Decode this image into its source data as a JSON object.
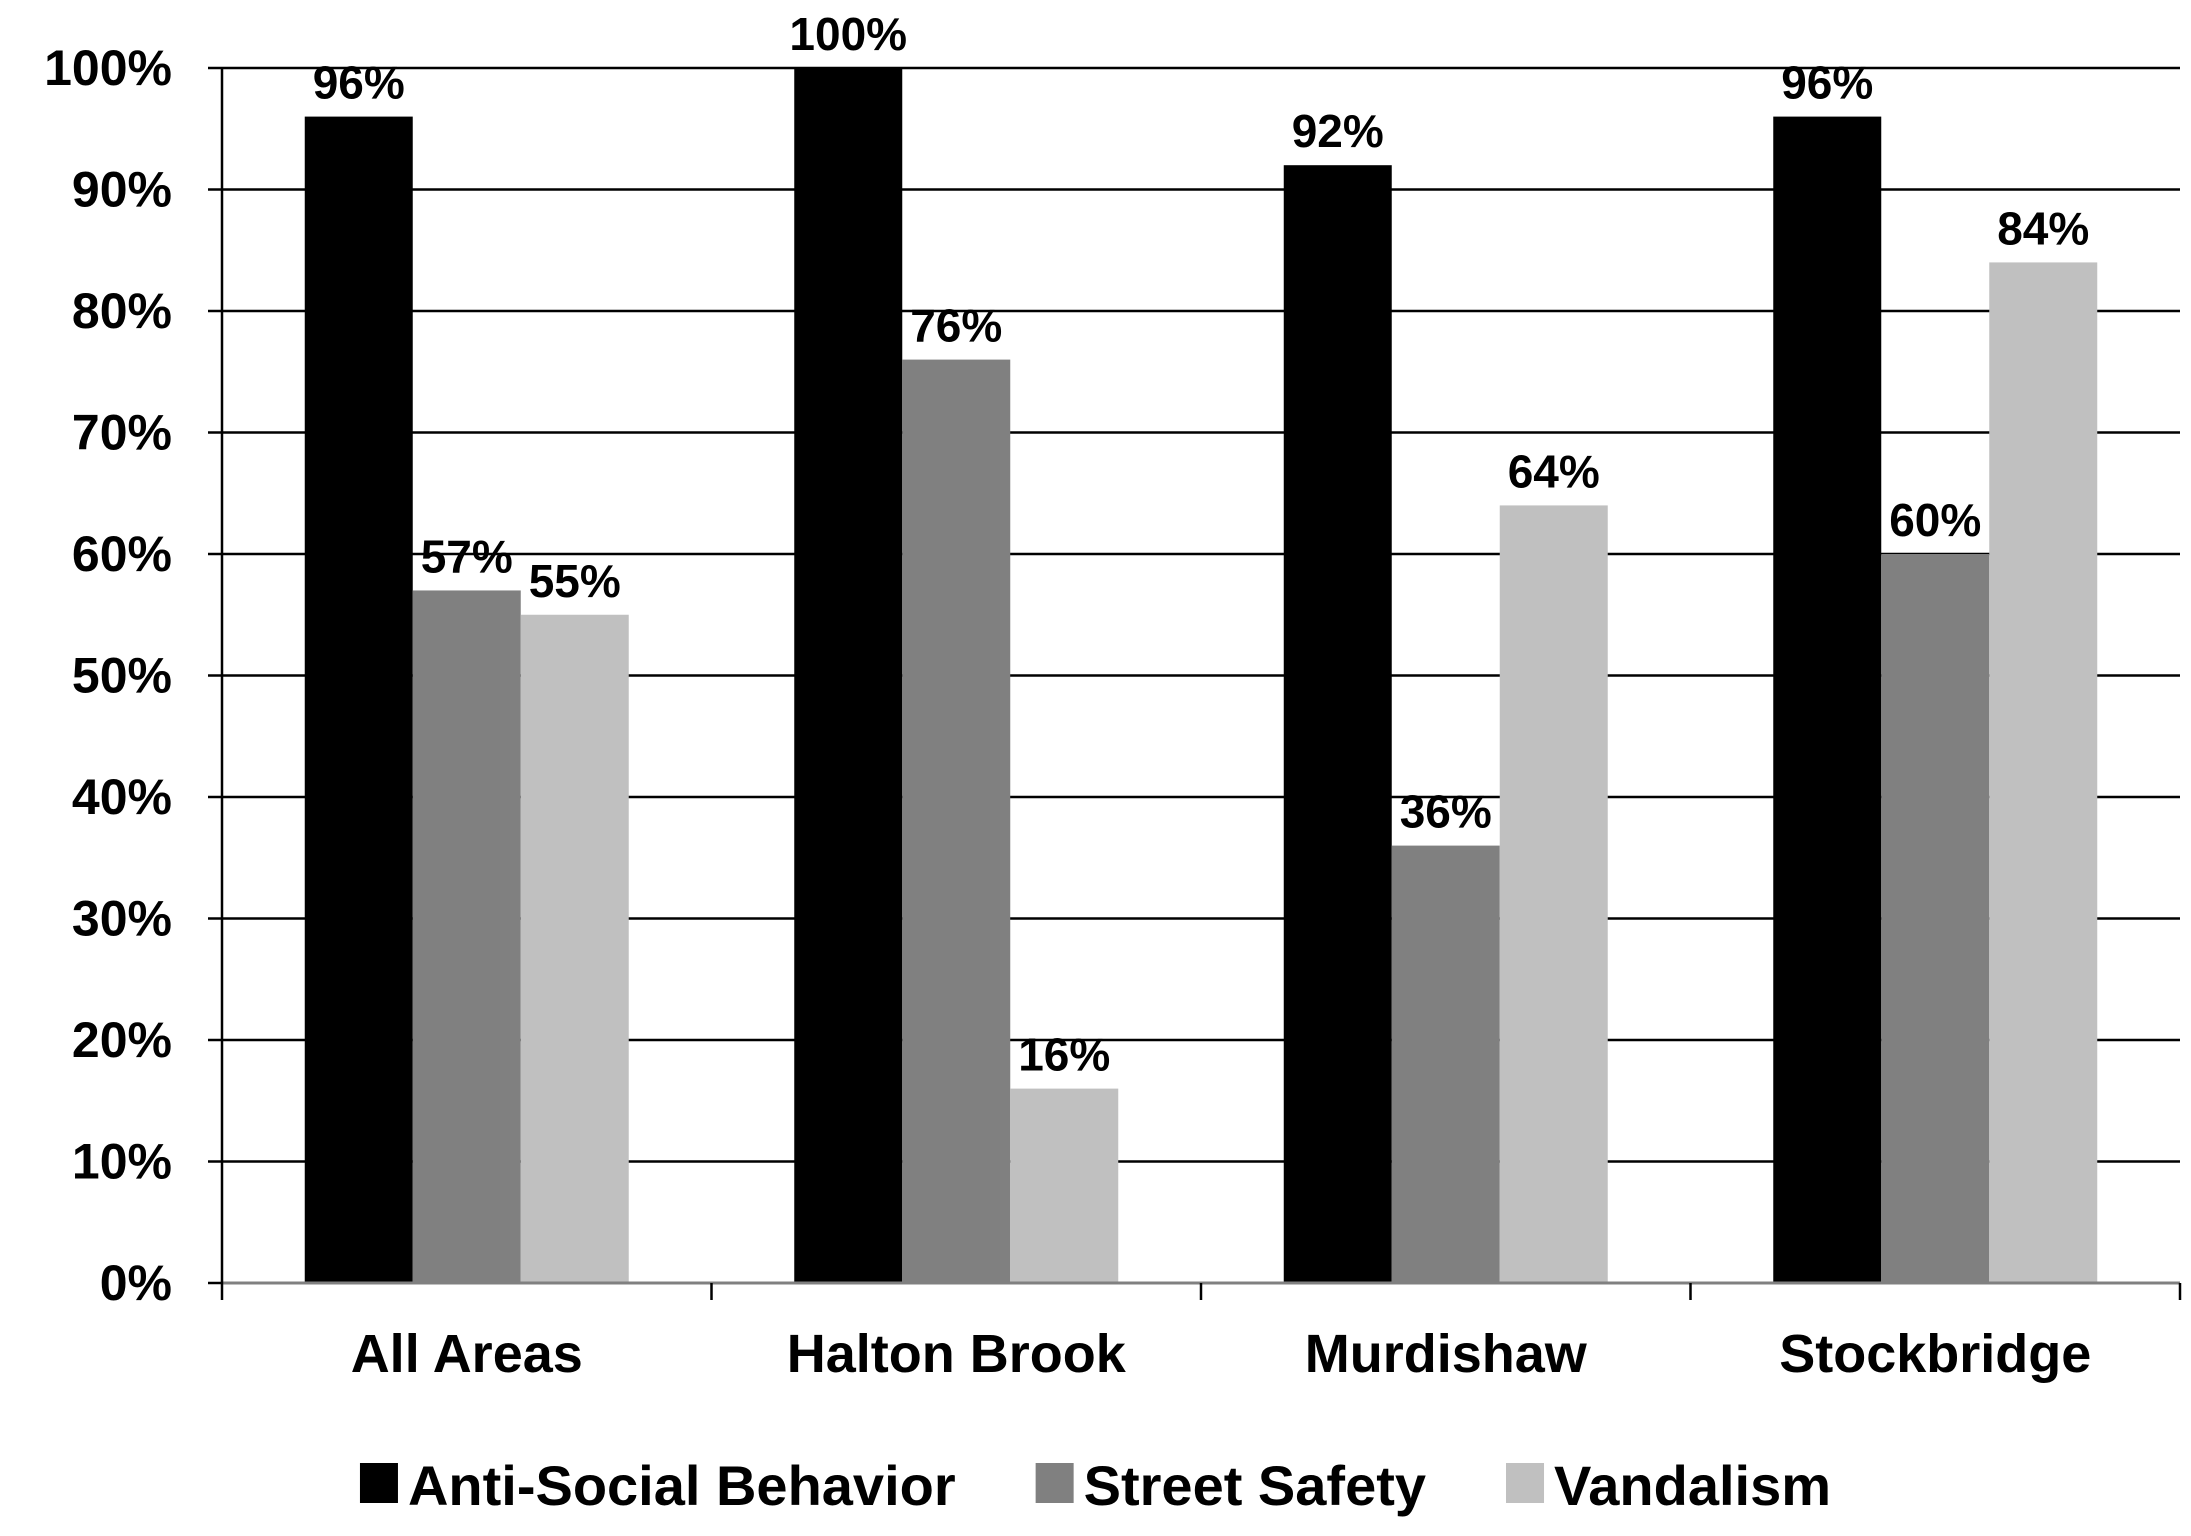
{
  "chart_data": {
    "type": "bar",
    "title": "",
    "xlabel": "",
    "ylabel": "",
    "categories": [
      "All Areas",
      "Halton Brook",
      "Murdishaw",
      "Stockbridge"
    ],
    "series": [
      {
        "name": "Anti-Social Behavior",
        "color": "#000000",
        "values": [
          96,
          100,
          92,
          96
        ],
        "labels": [
          "96%",
          "100%",
          "92%",
          "96%"
        ]
      },
      {
        "name": "Street Safety",
        "color": "#808080",
        "values": [
          57,
          76,
          36,
          60
        ],
        "labels": [
          "57%",
          "76%",
          "36%",
          "60%"
        ]
      },
      {
        "name": "Vandalism",
        "color": "#c0c0c0",
        "values": [
          55,
          16,
          64,
          84
        ],
        "labels": [
          "55%",
          "16%",
          "64%",
          "84%"
        ]
      }
    ],
    "ylim": [
      0,
      100
    ],
    "yticks": [
      "0%",
      "10%",
      "20%",
      "30%",
      "40%",
      "50%",
      "60%",
      "70%",
      "80%",
      "90%",
      "100%"
    ],
    "grid": true,
    "legend": "bottom"
  }
}
